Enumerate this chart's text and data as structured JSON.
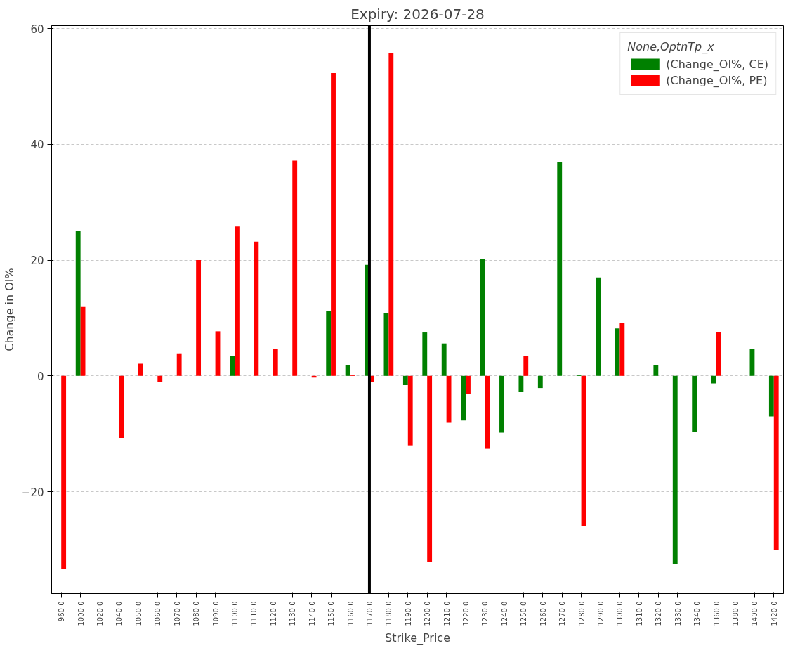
{
  "chart_data": {
    "type": "bar",
    "title": "Expiry: 2026-07-28",
    "xlabel": "Strike_Price",
    "ylabel": "Change in OI%",
    "legend_title": "None,OptnTp_x",
    "categories": [
      "960.0",
      "1000.0",
      "1020.0",
      "1040.0",
      "1050.0",
      "1060.0",
      "1070.0",
      "1080.0",
      "1090.0",
      "1100.0",
      "1110.0",
      "1120.0",
      "1130.0",
      "1140.0",
      "1150.0",
      "1160.0",
      "1170.0",
      "1180.0",
      "1190.0",
      "1200.0",
      "1210.0",
      "1220.0",
      "1230.0",
      "1240.0",
      "1250.0",
      "1260.0",
      "1270.0",
      "1280.0",
      "1290.0",
      "1300.0",
      "1310.0",
      "1320.0",
      "1330.0",
      "1340.0",
      "1360.0",
      "1380.0",
      "1400.0",
      "1420.0"
    ],
    "series": [
      {
        "name": "(Change_OI%, CE)",
        "color": "#008000",
        "values": [
          0,
          25.0,
          0,
          0,
          0,
          0,
          0,
          0,
          0,
          3.4,
          0,
          0,
          0,
          0,
          11.2,
          1.8,
          19.2,
          10.8,
          -1.6,
          7.5,
          5.6,
          -7.7,
          20.2,
          -9.8,
          -2.8,
          -2.1,
          36.9,
          0.2,
          17.0,
          8.2,
          0,
          1.9,
          -32.5,
          -9.7,
          -1.3,
          0,
          4.7,
          -7.0
        ]
      },
      {
        "name": "(Change_OI%, PE)",
        "color": "#ff0000",
        "values": [
          -33.3,
          11.9,
          0,
          -10.7,
          2.1,
          -1.0,
          3.9,
          20.0,
          7.7,
          25.8,
          23.2,
          4.7,
          37.2,
          -0.3,
          52.3,
          0.2,
          -1.0,
          55.8,
          -12.0,
          -32.2,
          -8.1,
          -3.1,
          -12.6,
          0,
          3.4,
          0,
          0,
          -26.0,
          0,
          9.1,
          0,
          0,
          0,
          0,
          7.6,
          0,
          0,
          -30.0
        ]
      }
    ],
    "ylim": [
      -37.6,
      60.5
    ],
    "yticks": [
      {
        "value": -20,
        "label": "−20"
      },
      0,
      20,
      40,
      60
    ],
    "grid": "y",
    "legend": "top right",
    "ref_lines": [
      {
        "axis": "x",
        "value": "1170.0",
        "color": "#000000"
      }
    ]
  }
}
